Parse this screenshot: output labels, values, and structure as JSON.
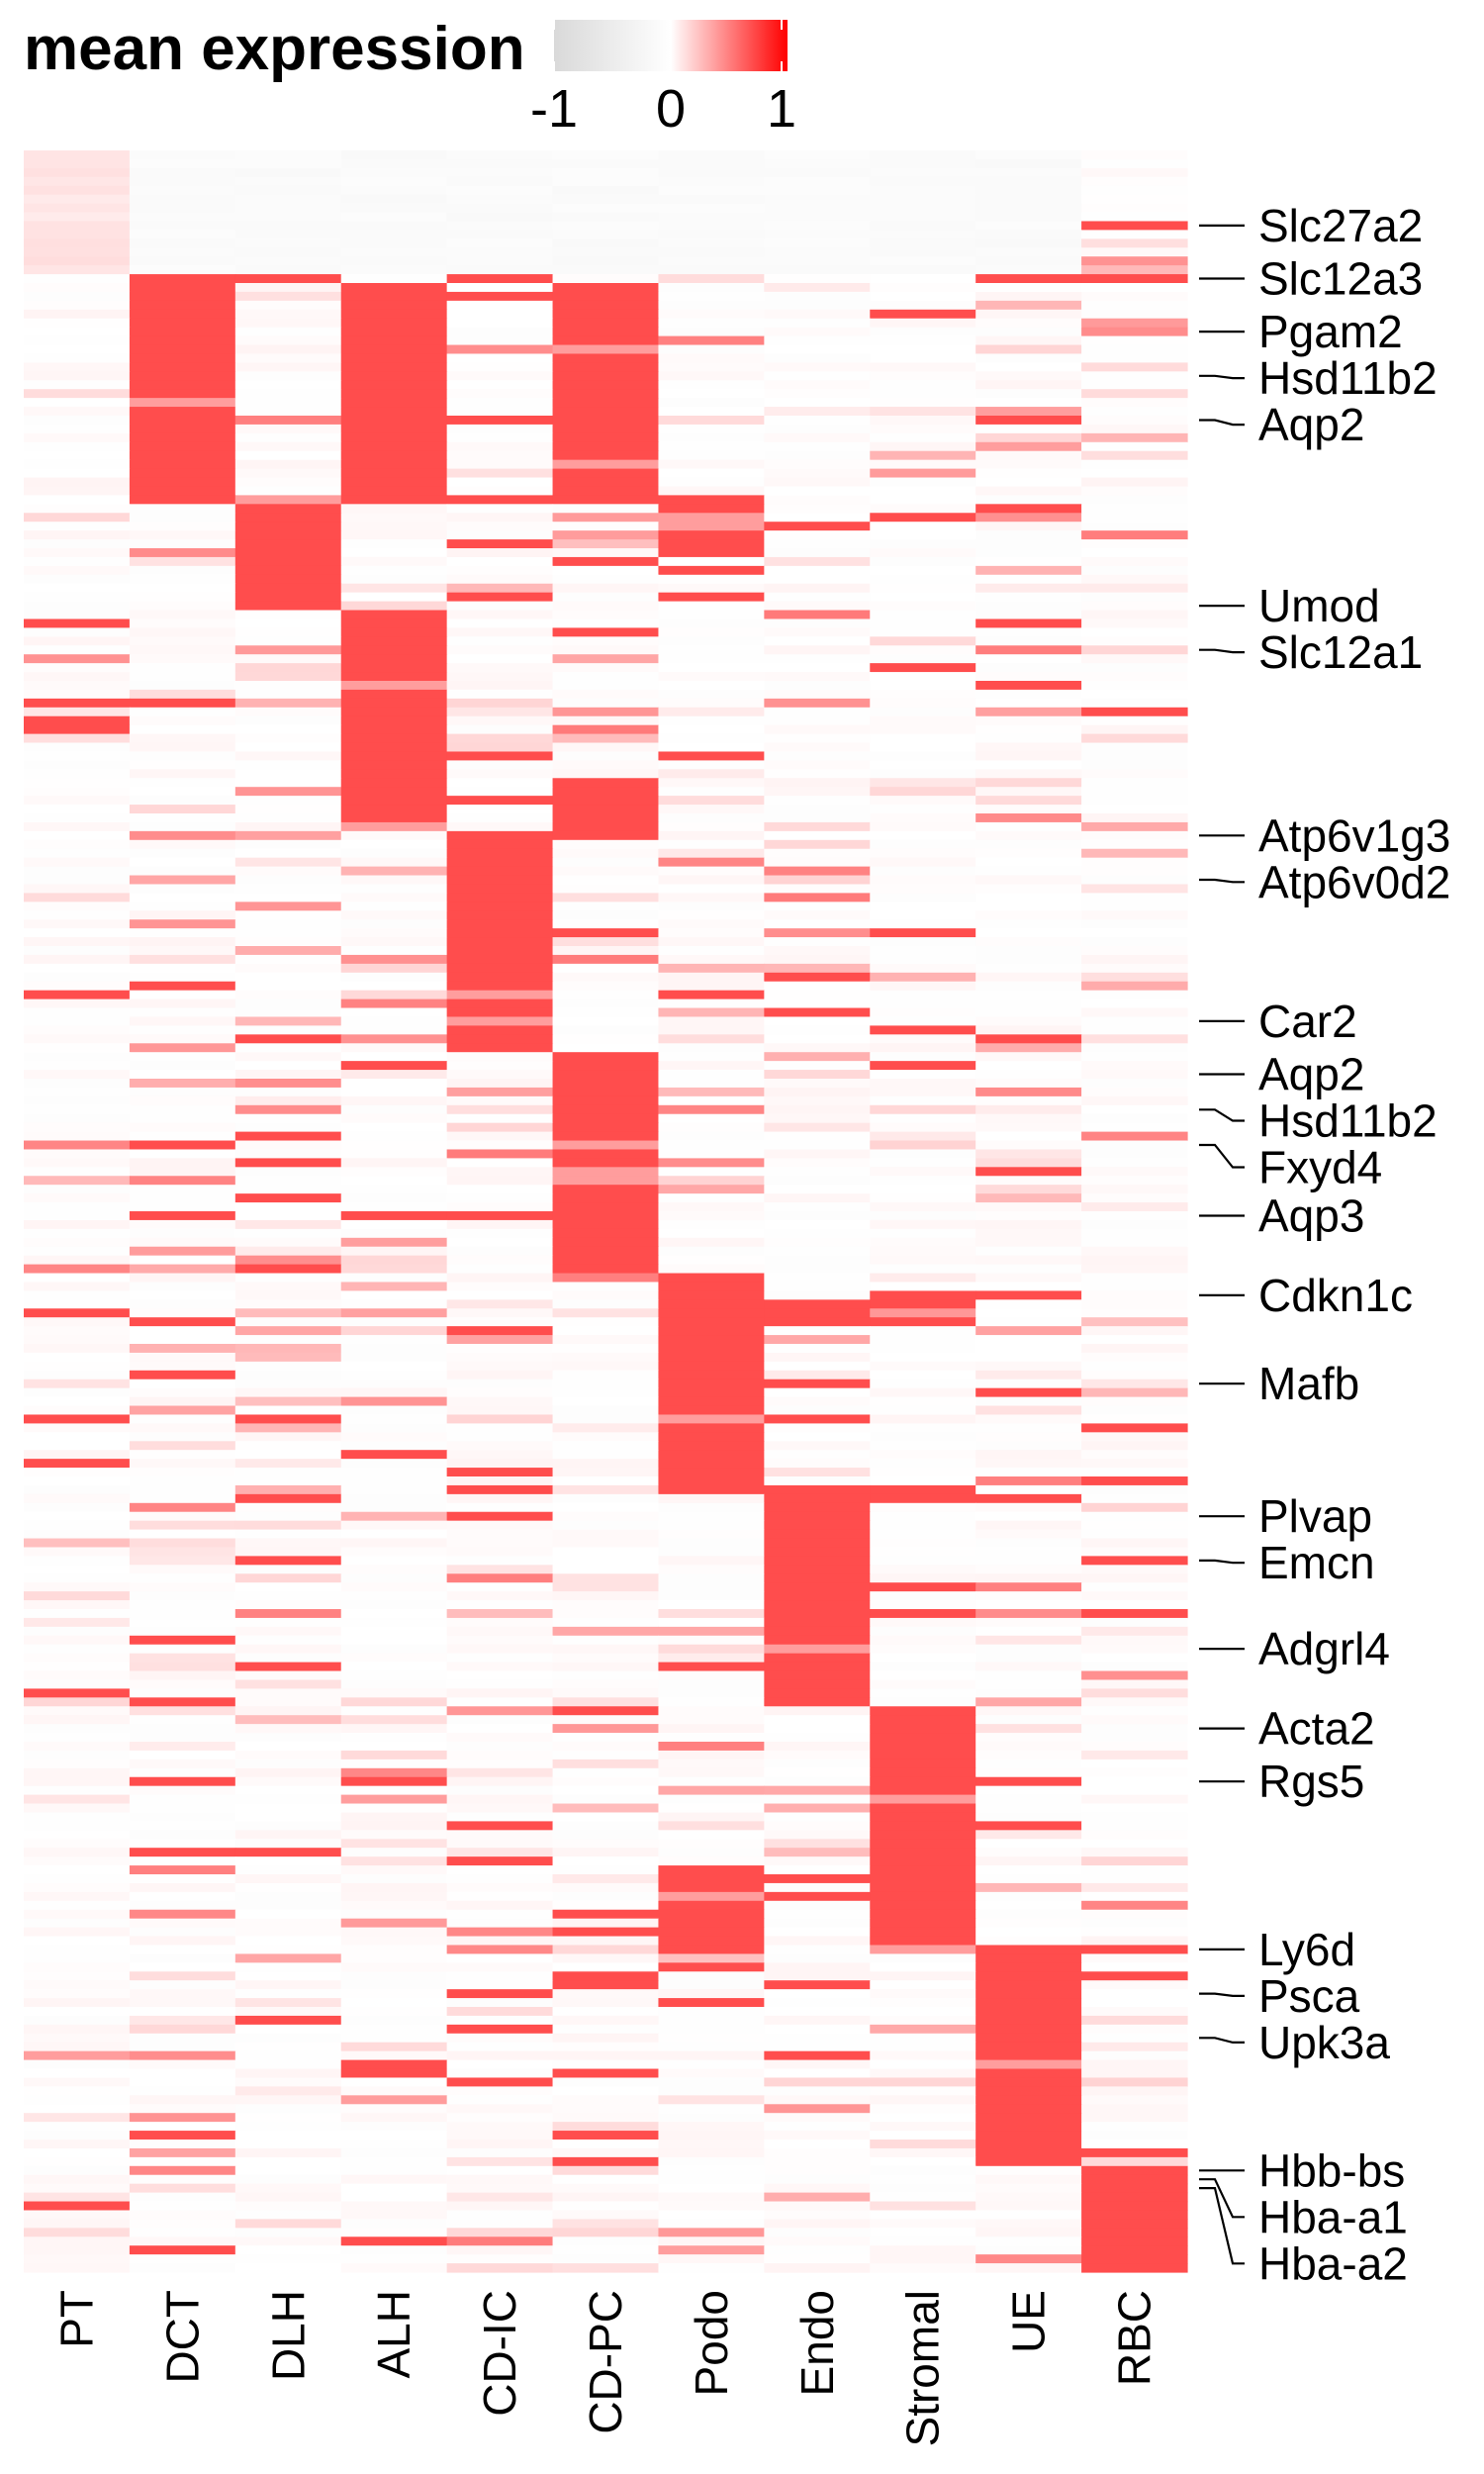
{
  "chart_data": {
    "type": "heatmap",
    "legend": {
      "title": "mean expression",
      "ticks": [
        "-1",
        "0",
        "1"
      ],
      "colors": [
        "#d9d9d9",
        "#ffffff",
        "#ff0000"
      ],
      "range": [
        -1,
        1
      ],
      "placement": "top-left"
    },
    "cell_color": "#ff4d4d",
    "columns": [
      "PT",
      "DCT",
      "DLH",
      "ALH",
      "CD-IC",
      "CD-PC",
      "Podo",
      "Endo",
      "Stromal",
      "UE",
      "RBC"
    ],
    "row_count": 240,
    "marker_blocks": [
      {
        "column": "PT",
        "rows": [
          0,
          14
        ],
        "value": 0.15
      },
      {
        "column": "DCT",
        "rows": [
          14,
          40
        ],
        "value": 1
      },
      {
        "column": "ALH",
        "rows": [
          16,
          40
        ],
        "value": 1
      },
      {
        "column": "CD-PC",
        "rows": [
          15,
          40
        ],
        "value": 1
      },
      {
        "column": "DLH",
        "rows": [
          39,
          52
        ],
        "value": 1
      },
      {
        "column": "Podo",
        "rows": [
          39,
          46
        ],
        "value": 1
      },
      {
        "column": "ALH",
        "rows": [
          52,
          77
        ],
        "value": 1
      },
      {
        "column": "CD-PC",
        "rows": [
          71,
          78
        ],
        "value": 1
      },
      {
        "column": "CD-IC",
        "rows": [
          77,
          102
        ],
        "value": 1
      },
      {
        "column": "CD-PC",
        "rows": [
          102,
          127
        ],
        "value": 1
      },
      {
        "column": "Podo",
        "rows": [
          127,
          152
        ],
        "value": 1
      },
      {
        "column": "Endo",
        "rows": [
          151,
          176
        ],
        "value": 1
      },
      {
        "column": "Stromal",
        "rows": [
          176,
          204
        ],
        "value": 1
      },
      {
        "column": "Podo",
        "rows": [
          195,
          204
        ],
        "value": 1
      },
      {
        "column": "UE",
        "rows": [
          203,
          228
        ],
        "value": 1
      },
      {
        "column": "RBC",
        "rows": [
          228,
          240
        ],
        "value": 1
      }
    ],
    "gene_labels": [
      {
        "gene": "Slc27a2",
        "row": 8
      },
      {
        "gene": "Slc12a3",
        "row": 14
      },
      {
        "gene": "Pgam2",
        "row": 20
      },
      {
        "gene": "Hsd11b2",
        "row": 25
      },
      {
        "gene": "Aqp2",
        "row": 30
      },
      {
        "gene": "Umod",
        "row": 51
      },
      {
        "gene": "Slc12a1",
        "row": 56
      },
      {
        "gene": "Atp6v1g3",
        "row": 77
      },
      {
        "gene": "Atp6v0d2",
        "row": 82
      },
      {
        "gene": "Car2",
        "row": 98
      },
      {
        "gene": "Aqp2",
        "row": 104
      },
      {
        "gene": "Hsd11b2",
        "row": 108
      },
      {
        "gene": "Fxyd4",
        "row": 112
      },
      {
        "gene": "Aqp3",
        "row": 120
      },
      {
        "gene": "Cdkn1c",
        "row": 129
      },
      {
        "gene": "Mafb",
        "row": 139
      },
      {
        "gene": "Plvap",
        "row": 154
      },
      {
        "gene": "Emcn",
        "row": 159
      },
      {
        "gene": "Adgrl4",
        "row": 169
      },
      {
        "gene": "Acta2",
        "row": 178
      },
      {
        "gene": "Rgs5",
        "row": 184
      },
      {
        "gene": "Ly6d",
        "row": 203
      },
      {
        "gene": "Psca",
        "row": 208
      },
      {
        "gene": "Upk3a",
        "row": 213
      },
      {
        "gene": "Hbb-bs",
        "row": 228
      },
      {
        "gene": "Hba-a1",
        "row": 229
      },
      {
        "gene": "Hba-a2",
        "row": 230
      }
    ]
  }
}
